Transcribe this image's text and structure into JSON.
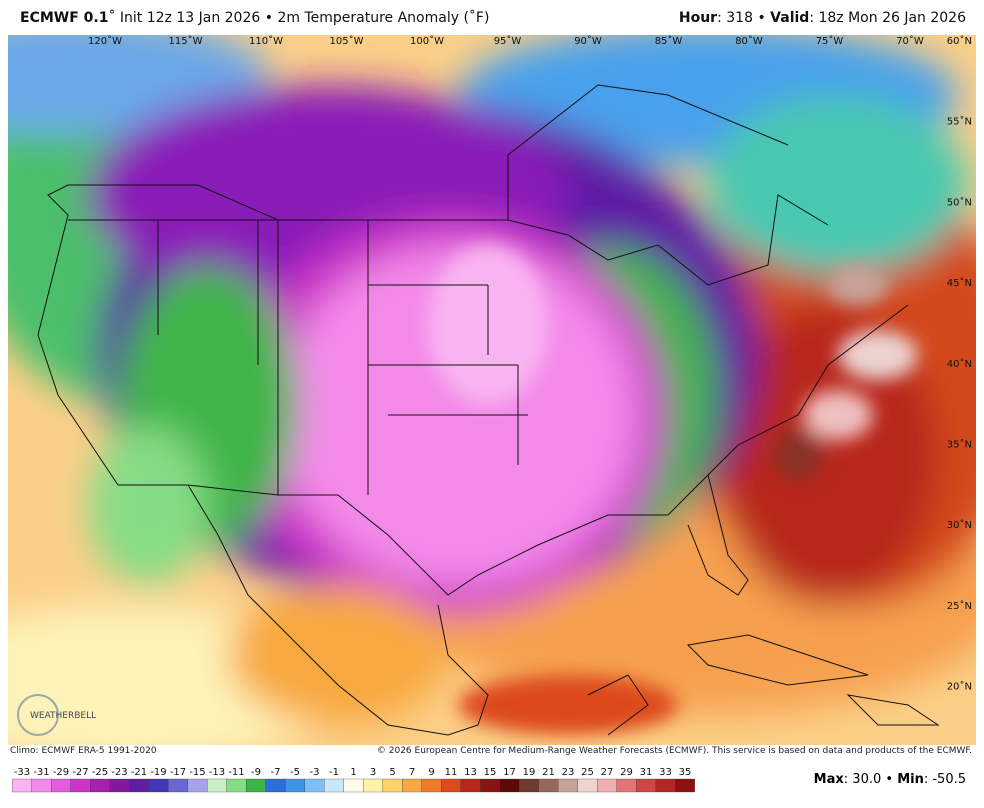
{
  "header": {
    "model": "ECMWF 0.1",
    "degree": "˚",
    "init": "Init 12z 13 Jan 2026",
    "field": "2m Temperature Anomaly (˚F)",
    "hour_label": "Hour",
    "hour": 318,
    "valid_label": "Valid",
    "valid": "18z Mon 26 Jan 2026"
  },
  "map": {
    "lon_labels": [
      "120˚W",
      "115˚W",
      "110˚W",
      "105˚W",
      "100˚W",
      "95˚W",
      "90˚W",
      "85˚W",
      "80˚W",
      "75˚W",
      "70˚W"
    ],
    "lat_labels": [
      "60˚N",
      "55˚N",
      "50˚N",
      "45˚N",
      "40˚N",
      "35˚N",
      "30˚N",
      "25˚N",
      "20˚N"
    ],
    "logo": "WEATHERBELL"
  },
  "footer": {
    "climo": "Climo: ECMWF ERA-5 1991-2020",
    "copyright": "© 2026 European Centre for Medium-Range Weather Forecasts (ECMWF). This service is based on data and products of the ECMWF."
  },
  "colorbar": {
    "ticks": [
      -33,
      -31,
      -29,
      -27,
      -25,
      -23,
      -21,
      -19,
      -17,
      -15,
      -13,
      -11,
      -9,
      -7,
      -5,
      -3,
      -1,
      1,
      3,
      5,
      7,
      9,
      11,
      13,
      15,
      17,
      19,
      21,
      23,
      25,
      27,
      29,
      31,
      33,
      35
    ],
    "colors": [
      "#f9b4f2",
      "#f38ae9",
      "#e45ddc",
      "#cc35c8",
      "#a81fae",
      "#84199e",
      "#5e1fa6",
      "#4436b8",
      "#6a66d6",
      "#a7a2ec",
      "#c9f0c4",
      "#86dc86",
      "#3fb44a",
      "#2a6fd8",
      "#3f94ea",
      "#7cc0f4",
      "#c8e8fb",
      "#fffbe6",
      "#fdf2a8",
      "#fbd26a",
      "#f8a840",
      "#ef7a2a",
      "#dd4a1c",
      "#b8261a",
      "#8a1410",
      "#5c0a08",
      "#6e3a2c",
      "#96675a",
      "#c7a39a",
      "#ecd4d0",
      "#f0b0b0",
      "#e27474",
      "#cf4646",
      "#b52626",
      "#8c1212"
    ]
  },
  "stats": {
    "max_label": "Max",
    "max": "30.0",
    "min_label": "Min",
    "min": "-50.5"
  }
}
